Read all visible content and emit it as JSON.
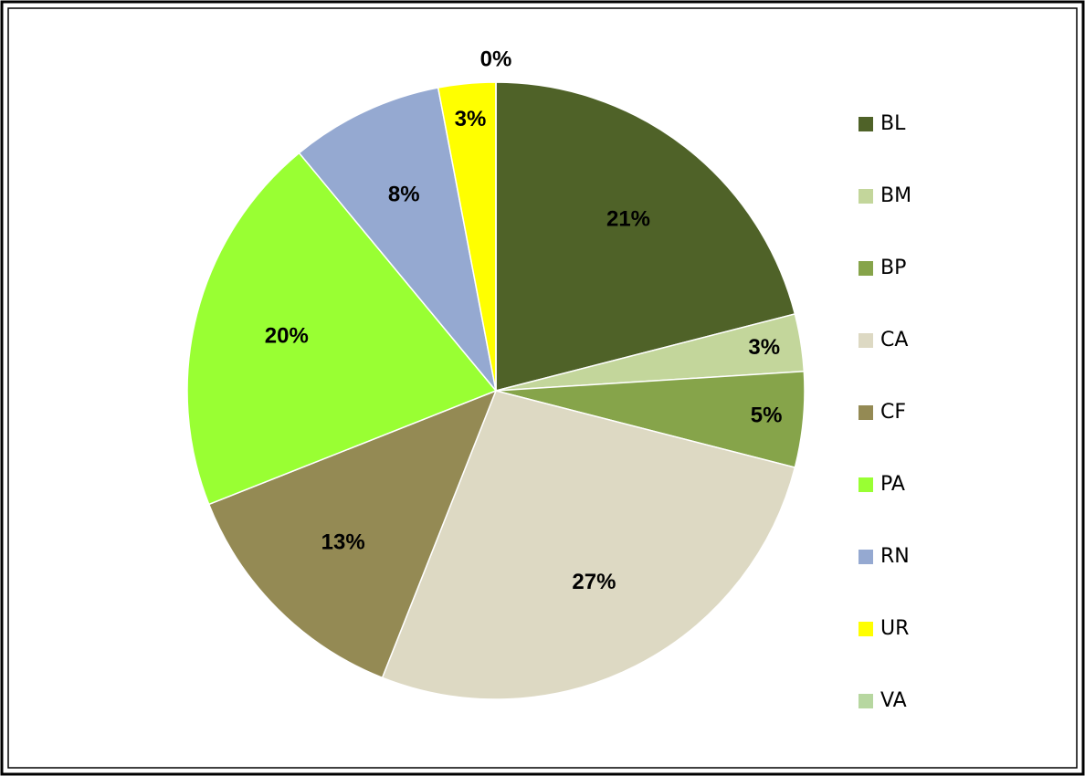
{
  "chart_data": {
    "type": "pie",
    "categories": [
      "BL",
      "BM",
      "BP",
      "CA",
      "CF",
      "PA",
      "RN",
      "UR",
      "VA"
    ],
    "values": [
      21,
      3,
      5,
      27,
      13,
      20,
      8,
      3,
      0
    ],
    "value_labels": [
      "21%",
      "3%",
      "5%",
      "27%",
      "13%",
      "20%",
      "8%",
      "3%",
      "0%"
    ],
    "colors": [
      "#4f6228",
      "#c3d69b",
      "#86a44a",
      "#ddd9c3",
      "#948a54",
      "#99ff33",
      "#95a9d1",
      "#ffff00",
      "#b7d7a0"
    ],
    "legend": "right"
  }
}
